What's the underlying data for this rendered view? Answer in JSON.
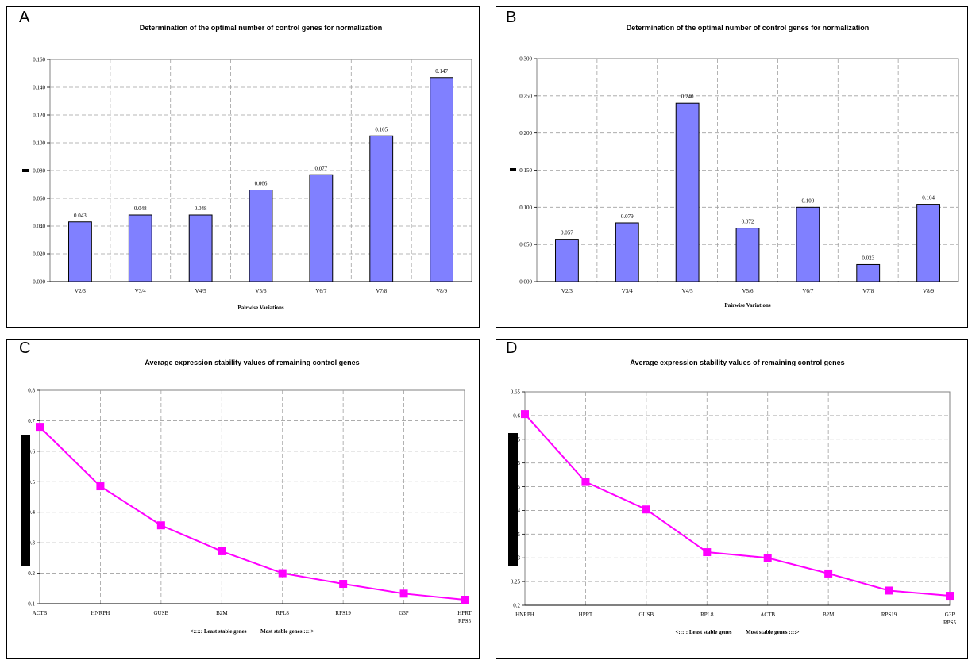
{
  "chart_data": [
    {
      "panel": "A",
      "type": "bar",
      "title": "Determination of the optimal number of control genes for normalization",
      "xlabel": "Pairwise Variations",
      "ylabel": "",
      "categories": [
        "V2/3",
        "V3/4",
        "V4/5",
        "V5/6",
        "V6/7",
        "V7/8",
        "V8/9"
      ],
      "values": [
        0.043,
        0.048,
        0.048,
        0.066,
        0.077,
        0.105,
        0.147
      ],
      "data_labels": [
        "0.043",
        "0.048",
        "0.048",
        "0.066",
        "0.077",
        "0.105",
        "0.147"
      ],
      "ylim": [
        0,
        0.16
      ],
      "yticks": [
        "0.000",
        "0.020",
        "0.040",
        "0.060",
        "0.080",
        "0.100",
        "0.120",
        "0.140",
        "0.160"
      ],
      "grid": true,
      "colors": {
        "bar": "#8080ff"
      }
    },
    {
      "panel": "B",
      "type": "bar",
      "title": "Determination of the optimal number of control genes for normalization",
      "xlabel": "Pairwise Variations",
      "ylabel": "",
      "categories": [
        "V2/3",
        "V3/4",
        "V4/5",
        "V5/6",
        "V6/7",
        "V7/8",
        "V8/9"
      ],
      "values": [
        0.057,
        0.079,
        0.24,
        0.072,
        0.1,
        0.023,
        0.104
      ],
      "data_labels": [
        "0.057",
        "0.079",
        "0.240",
        "0.072",
        "0.100",
        "0.023",
        "0.104"
      ],
      "ylim": [
        0,
        0.3
      ],
      "yticks": [
        "0.000",
        "0.050",
        "0.100",
        "0.150",
        "0.200",
        "0.250",
        "0.300"
      ],
      "grid": true,
      "colors": {
        "bar": "#8080ff"
      }
    },
    {
      "panel": "C",
      "type": "line",
      "title": "Average expression stability values of remaining control genes",
      "xlabel": "<::::: Least stable genes          Most stable genes ::::>",
      "ylabel": "",
      "categories": [
        "ACTB",
        "HNRPH",
        "GUSB",
        "B2M",
        "RPL8",
        "RPS19",
        "G3P",
        "HPRT RPS5"
      ],
      "values": [
        0.68,
        0.485,
        0.357,
        0.272,
        0.2,
        0.165,
        0.133,
        0.113
      ],
      "ylim": [
        0.1,
        0.8
      ],
      "yticks": [
        "0.1",
        "0.2",
        "0.3",
        "0.4",
        "0.5",
        "0.6",
        "0.7",
        "0.8"
      ],
      "grid": true,
      "colors": {
        "line": "#ff00ff",
        "marker": "#ff00ff"
      }
    },
    {
      "panel": "D",
      "type": "line",
      "title": "Average expression stability values of remaining control genes",
      "xlabel": "<::::: Least stable genes          Most stable genes ::::>",
      "ylabel": "",
      "categories": [
        "HNRPH",
        "HPRT",
        "GUSB",
        "RPL8",
        "ACTB",
        "B2M",
        "RPS19",
        "G3P RPS5"
      ],
      "values": [
        0.603,
        0.46,
        0.402,
        0.312,
        0.3,
        0.267,
        0.231,
        0.22
      ],
      "ylim": [
        0.2,
        0.65
      ],
      "yticks": [
        "0.2",
        "0.25",
        "0.3",
        "0.35",
        "0.4",
        "0.45",
        "0.5",
        "0.55",
        "0.6",
        "0.65"
      ],
      "grid": true,
      "colors": {
        "line": "#ff00ff",
        "marker": "#ff00ff"
      }
    }
  ]
}
